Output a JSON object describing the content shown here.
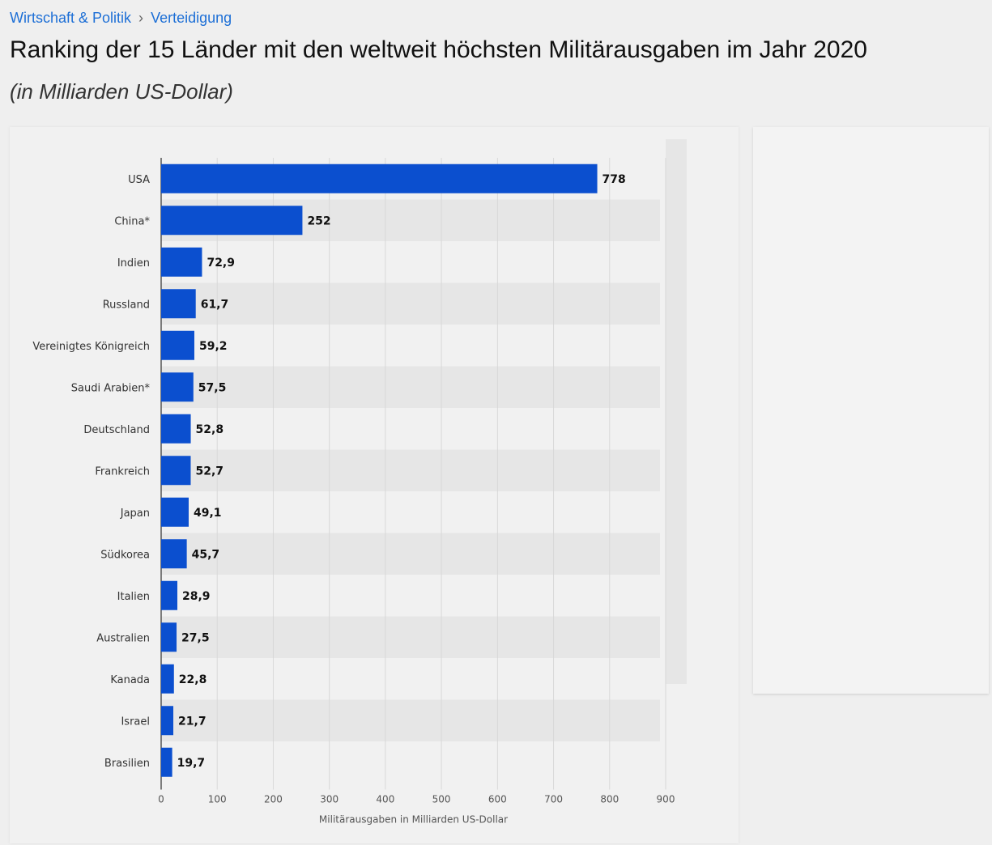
{
  "breadcrumb": {
    "items": [
      "Wirtschaft & Politik",
      "Verteidigung"
    ],
    "separator": "›"
  },
  "header": {
    "title": "Ranking der 15 Länder mit den weltweit höchsten Militärausgaben im Jahr 2020",
    "subtitle": "(in Milliarden US-Dollar)"
  },
  "chart_data": {
    "type": "bar",
    "orientation": "horizontal",
    "categories": [
      "USA",
      "China*",
      "Indien",
      "Russland",
      "Vereinigtes Königreich",
      "Saudi Arabien*",
      "Deutschland",
      "Frankreich",
      "Japan",
      "Südkorea",
      "Italien",
      "Australien",
      "Kanada",
      "Israel",
      "Brasilien"
    ],
    "values": [
      778,
      252,
      72.9,
      61.7,
      59.2,
      57.5,
      52.8,
      52.7,
      49.1,
      45.7,
      28.9,
      27.5,
      22.8,
      21.7,
      19.7
    ],
    "value_labels": [
      "778",
      "252",
      "72,9",
      "61,7",
      "59,2",
      "57,5",
      "52,8",
      "52,7",
      "49,1",
      "45,7",
      "28,9",
      "27,5",
      "22,8",
      "21,7",
      "19,7"
    ],
    "xlabel": "Militärausgaben in Milliarden US-Dollar",
    "xlim": [
      0,
      900
    ],
    "xticks": [
      "0",
      "100",
      "200",
      "300",
      "400",
      "500",
      "600",
      "700",
      "800",
      "900"
    ],
    "grid": true,
    "bar_color": "#0b4fcf"
  }
}
